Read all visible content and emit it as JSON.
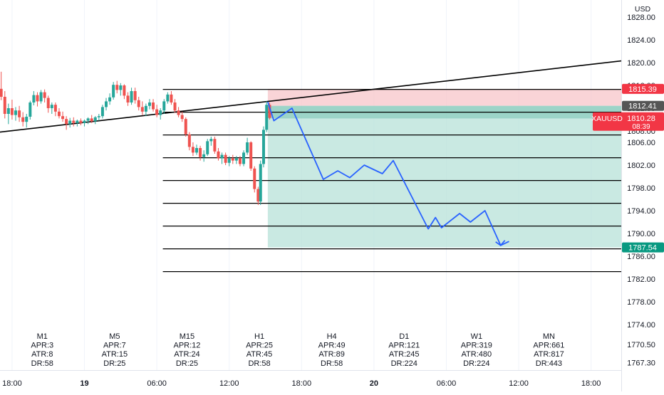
{
  "chart_data": {
    "type": "candlestick",
    "symbol": "XAUUSD",
    "currency": "USD",
    "ylim": [
      1766.0,
      1831.0
    ],
    "y_ticks": [
      1828.0,
      1824.0,
      1820.0,
      1816.0,
      1812.0,
      1808.0,
      1806.0,
      1802.0,
      1798.0,
      1794.0,
      1790.0,
      1786.0,
      1782.0,
      1778.0,
      1774.0,
      1770.5,
      1767.3
    ],
    "y_tick_labels": [
      "1828.00",
      "1824.00",
      "1820.00",
      "1816.00",
      "1812.00",
      "1808.00",
      "1806.00",
      "1802.00",
      "1798.00",
      "1794.00",
      "1790.00",
      "1786.00",
      "1782.00",
      "1778.00",
      "1774.00",
      "1770.50",
      "1767.30"
    ],
    "x_ticks": [
      "18:00",
      "19",
      "06:00",
      "12:00",
      "18:00",
      "20",
      "06:00",
      "12:00",
      "18:00"
    ],
    "x_tick_hours": [
      0,
      6,
      12,
      18,
      24,
      30,
      36,
      42,
      48
    ],
    "xlim_hours": [
      -1,
      50.5
    ],
    "price_tags": [
      {
        "label": "1815.39",
        "value": 1815.39,
        "color": "#f23645"
      },
      {
        "label": "1812.41",
        "value": 1812.41,
        "color": "#555555"
      },
      {
        "label": "XAUUSD",
        "label2": "1810.28",
        "label3": "08:39",
        "value": 1810.28,
        "color": "#f23645"
      },
      {
        "label": "1787.54",
        "value": 1787.54,
        "color": "#089981"
      }
    ],
    "trendline": {
      "points": [
        [
          -1,
          1807.8
        ],
        [
          50.5,
          1820.3
        ]
      ],
      "color": "#000000"
    },
    "levels": [
      {
        "value": 1815.3,
        "x_start": 12.5,
        "x_end": 50.5
      },
      {
        "value": 1811.3,
        "x_start": 12.5,
        "x_end": 50.5
      },
      {
        "value": 1807.3,
        "x_start": 12.5,
        "x_end": 50.5
      },
      {
        "value": 1803.3,
        "x_start": 12.5,
        "x_end": 50.5
      },
      {
        "value": 1799.3,
        "x_start": 12.5,
        "x_end": 50.5
      },
      {
        "value": 1795.3,
        "x_start": 12.5,
        "x_end": 50.5
      },
      {
        "value": 1791.3,
        "x_start": 12.5,
        "x_end": 50.5
      },
      {
        "value": 1787.3,
        "x_start": 12.5,
        "x_end": 50.5
      },
      {
        "value": 1783.3,
        "x_start": 12.5,
        "x_end": 50.5
      }
    ],
    "position": {
      "x_start": 21.2,
      "x_end": 50.5,
      "entry": 1812.41,
      "stop": 1815.39,
      "target": 1787.54,
      "entry_band_low": 1810.2,
      "stop_color": "#f7c6c9",
      "target_color": "#b2dfd6",
      "band_color": "#7fc7b7"
    },
    "projection": {
      "color": "#2962ff",
      "points": [
        [
          21.2,
          1813.1
        ],
        [
          21.7,
          1809.8
        ],
        [
          23.2,
          1812.0
        ],
        [
          25.8,
          1799.5
        ],
        [
          27.0,
          1801.0
        ],
        [
          28.0,
          1799.8
        ],
        [
          29.2,
          1802.0
        ],
        [
          30.7,
          1800.5
        ],
        [
          31.6,
          1802.8
        ],
        [
          34.5,
          1790.8
        ],
        [
          35.1,
          1792.8
        ],
        [
          35.6,
          1791.0
        ],
        [
          37.1,
          1793.5
        ],
        [
          38.0,
          1792.0
        ],
        [
          39.2,
          1794.0
        ],
        [
          40.5,
          1787.9
        ],
        [
          41.2,
          1788.6
        ]
      ],
      "arrow_tip": [
        40.5,
        1787.9
      ]
    },
    "candles": [
      {
        "t": -0.9,
        "o": 1815.4,
        "h": 1818.4,
        "l": 1813.4,
        "c": 1814.0
      },
      {
        "t": -0.6,
        "o": 1814.0,
        "h": 1815.0,
        "l": 1810.2,
        "c": 1811.0
      },
      {
        "t": -0.3,
        "o": 1811.0,
        "h": 1812.8,
        "l": 1809.2,
        "c": 1812.0
      },
      {
        "t": 0.0,
        "o": 1812.0,
        "h": 1813.5,
        "l": 1810.0,
        "c": 1810.8
      },
      {
        "t": 0.3,
        "o": 1810.8,
        "h": 1812.2,
        "l": 1809.8,
        "c": 1811.6
      },
      {
        "t": 0.6,
        "o": 1811.6,
        "h": 1812.4,
        "l": 1809.6,
        "c": 1810.4
      },
      {
        "t": 0.9,
        "o": 1810.4,
        "h": 1811.3,
        "l": 1808.8,
        "c": 1809.6
      },
      {
        "t": 1.2,
        "o": 1809.6,
        "h": 1811.0,
        "l": 1808.6,
        "c": 1810.5
      },
      {
        "t": 1.5,
        "o": 1810.5,
        "h": 1813.3,
        "l": 1810.0,
        "c": 1813.0
      },
      {
        "t": 1.8,
        "o": 1813.0,
        "h": 1815.0,
        "l": 1812.5,
        "c": 1814.3
      },
      {
        "t": 2.1,
        "o": 1814.3,
        "h": 1814.8,
        "l": 1812.3,
        "c": 1813.2
      },
      {
        "t": 2.4,
        "o": 1813.2,
        "h": 1815.2,
        "l": 1812.8,
        "c": 1814.8
      },
      {
        "t": 2.7,
        "o": 1814.8,
        "h": 1815.3,
        "l": 1813.0,
        "c": 1813.8
      },
      {
        "t": 3.0,
        "o": 1813.8,
        "h": 1814.2,
        "l": 1811.2,
        "c": 1812.0
      },
      {
        "t": 3.3,
        "o": 1812.0,
        "h": 1813.0,
        "l": 1811.0,
        "c": 1812.6
      },
      {
        "t": 3.6,
        "o": 1812.6,
        "h": 1813.0,
        "l": 1810.6,
        "c": 1811.4
      },
      {
        "t": 3.9,
        "o": 1811.4,
        "h": 1812.0,
        "l": 1810.2,
        "c": 1810.6
      },
      {
        "t": 4.2,
        "o": 1810.6,
        "h": 1811.4,
        "l": 1809.6,
        "c": 1810.1
      },
      {
        "t": 4.5,
        "o": 1810.1,
        "h": 1810.6,
        "l": 1808.2,
        "c": 1809.2
      },
      {
        "t": 4.8,
        "o": 1809.2,
        "h": 1810.3,
        "l": 1808.6,
        "c": 1809.8
      },
      {
        "t": 5.1,
        "o": 1809.8,
        "h": 1810.4,
        "l": 1808.8,
        "c": 1809.4
      },
      {
        "t": 5.4,
        "o": 1809.4,
        "h": 1810.0,
        "l": 1808.8,
        "c": 1809.8
      },
      {
        "t": 5.7,
        "o": 1809.8,
        "h": 1810.2,
        "l": 1809.0,
        "c": 1809.4
      },
      {
        "t": 6.0,
        "o": 1809.4,
        "h": 1810.0,
        "l": 1808.8,
        "c": 1809.8
      },
      {
        "t": 6.3,
        "o": 1809.8,
        "h": 1810.4,
        "l": 1809.2,
        "c": 1810.2
      },
      {
        "t": 6.6,
        "o": 1810.2,
        "h": 1810.8,
        "l": 1809.4,
        "c": 1809.7
      },
      {
        "t": 6.9,
        "o": 1809.7,
        "h": 1810.6,
        "l": 1809.2,
        "c": 1810.4
      },
      {
        "t": 7.2,
        "o": 1810.4,
        "h": 1811.0,
        "l": 1809.8,
        "c": 1810.6
      },
      {
        "t": 7.5,
        "o": 1810.6,
        "h": 1812.6,
        "l": 1810.2,
        "c": 1812.2
      },
      {
        "t": 7.8,
        "o": 1812.2,
        "h": 1813.8,
        "l": 1811.6,
        "c": 1813.2
      },
      {
        "t": 8.1,
        "o": 1813.2,
        "h": 1814.6,
        "l": 1812.6,
        "c": 1813.9
      },
      {
        "t": 8.4,
        "o": 1813.9,
        "h": 1816.6,
        "l": 1813.5,
        "c": 1816.1
      },
      {
        "t": 8.7,
        "o": 1816.1,
        "h": 1816.8,
        "l": 1814.6,
        "c": 1815.2
      },
      {
        "t": 9.0,
        "o": 1815.2,
        "h": 1816.4,
        "l": 1814.2,
        "c": 1816.0
      },
      {
        "t": 9.3,
        "o": 1816.0,
        "h": 1816.2,
        "l": 1813.6,
        "c": 1814.2
      },
      {
        "t": 9.6,
        "o": 1814.2,
        "h": 1814.8,
        "l": 1812.4,
        "c": 1813.0
      },
      {
        "t": 9.9,
        "o": 1813.0,
        "h": 1815.6,
        "l": 1812.6,
        "c": 1815.0
      },
      {
        "t": 10.2,
        "o": 1815.0,
        "h": 1815.6,
        "l": 1812.8,
        "c": 1813.4
      },
      {
        "t": 10.5,
        "o": 1813.4,
        "h": 1814.0,
        "l": 1811.6,
        "c": 1812.2
      },
      {
        "t": 10.8,
        "o": 1812.2,
        "h": 1813.2,
        "l": 1810.8,
        "c": 1811.4
      },
      {
        "t": 11.1,
        "o": 1811.4,
        "h": 1812.8,
        "l": 1810.6,
        "c": 1812.4
      },
      {
        "t": 11.4,
        "o": 1812.4,
        "h": 1813.6,
        "l": 1811.8,
        "c": 1813.0
      },
      {
        "t": 11.7,
        "o": 1813.0,
        "h": 1813.6,
        "l": 1811.4,
        "c": 1811.8
      },
      {
        "t": 12.0,
        "o": 1811.8,
        "h": 1812.6,
        "l": 1810.4,
        "c": 1810.8
      },
      {
        "t": 12.3,
        "o": 1810.8,
        "h": 1812.0,
        "l": 1810.0,
        "c": 1811.6
      },
      {
        "t": 12.6,
        "o": 1811.6,
        "h": 1813.6,
        "l": 1811.0,
        "c": 1813.2
      },
      {
        "t": 12.9,
        "o": 1813.2,
        "h": 1814.8,
        "l": 1812.8,
        "c": 1814.4
      },
      {
        "t": 13.2,
        "o": 1814.4,
        "h": 1815.0,
        "l": 1812.6,
        "c": 1813.0
      },
      {
        "t": 13.5,
        "o": 1813.0,
        "h": 1813.6,
        "l": 1811.2,
        "c": 1811.6
      },
      {
        "t": 13.8,
        "o": 1811.6,
        "h": 1812.2,
        "l": 1810.4,
        "c": 1810.8
      },
      {
        "t": 14.1,
        "o": 1810.8,
        "h": 1811.4,
        "l": 1809.6,
        "c": 1810.1
      },
      {
        "t": 14.4,
        "o": 1810.1,
        "h": 1810.4,
        "l": 1807.0,
        "c": 1807.4
      },
      {
        "t": 14.7,
        "o": 1807.4,
        "h": 1807.8,
        "l": 1804.6,
        "c": 1805.2
      },
      {
        "t": 15.0,
        "o": 1805.2,
        "h": 1806.0,
        "l": 1803.6,
        "c": 1804.2
      },
      {
        "t": 15.3,
        "o": 1804.2,
        "h": 1805.6,
        "l": 1803.8,
        "c": 1805.0
      },
      {
        "t": 15.6,
        "o": 1805.0,
        "h": 1805.4,
        "l": 1802.8,
        "c": 1803.4
      },
      {
        "t": 15.9,
        "o": 1803.4,
        "h": 1804.6,
        "l": 1802.6,
        "c": 1803.9
      },
      {
        "t": 16.2,
        "o": 1803.9,
        "h": 1806.6,
        "l": 1803.6,
        "c": 1806.2
      },
      {
        "t": 16.5,
        "o": 1806.2,
        "h": 1807.0,
        "l": 1805.4,
        "c": 1806.6
      },
      {
        "t": 16.8,
        "o": 1806.6,
        "h": 1807.0,
        "l": 1804.0,
        "c": 1804.4
      },
      {
        "t": 17.1,
        "o": 1804.4,
        "h": 1805.0,
        "l": 1802.8,
        "c": 1803.2
      },
      {
        "t": 17.4,
        "o": 1803.2,
        "h": 1804.2,
        "l": 1802.2,
        "c": 1803.8
      },
      {
        "t": 17.7,
        "o": 1803.8,
        "h": 1804.2,
        "l": 1802.0,
        "c": 1802.4
      },
      {
        "t": 18.0,
        "o": 1802.4,
        "h": 1803.6,
        "l": 1801.8,
        "c": 1803.2
      },
      {
        "t": 18.3,
        "o": 1803.2,
        "h": 1803.8,
        "l": 1802.2,
        "c": 1802.8
      },
      {
        "t": 18.6,
        "o": 1802.8,
        "h": 1803.6,
        "l": 1802.2,
        "c": 1803.2
      },
      {
        "t": 18.9,
        "o": 1803.2,
        "h": 1803.6,
        "l": 1801.8,
        "c": 1802.2
      },
      {
        "t": 19.2,
        "o": 1802.2,
        "h": 1804.6,
        "l": 1801.8,
        "c": 1804.2
      },
      {
        "t": 19.5,
        "o": 1804.2,
        "h": 1806.8,
        "l": 1803.8,
        "c": 1806.0
      },
      {
        "t": 19.8,
        "o": 1806.0,
        "h": 1806.2,
        "l": 1801.0,
        "c": 1801.4
      },
      {
        "t": 20.1,
        "o": 1801.4,
        "h": 1801.8,
        "l": 1797.2,
        "c": 1797.8
      },
      {
        "t": 20.4,
        "o": 1797.8,
        "h": 1798.2,
        "l": 1795.0,
        "c": 1795.6
      },
      {
        "t": 20.6,
        "o": 1795.6,
        "h": 1802.8,
        "l": 1795.0,
        "c": 1802.2
      },
      {
        "t": 20.85,
        "o": 1802.2,
        "h": 1808.8,
        "l": 1801.6,
        "c": 1808.2
      },
      {
        "t": 21.1,
        "o": 1808.2,
        "h": 1813.2,
        "l": 1807.8,
        "c": 1812.6
      },
      {
        "t": 21.35,
        "o": 1812.6,
        "h": 1813.0,
        "l": 1810.0,
        "c": 1810.3
      }
    ],
    "timeframe_stats": [
      {
        "tf": "M1",
        "apr": "APR:3",
        "atr": "ATR:8",
        "dr": "DR:58",
        "t": 2.5
      },
      {
        "tf": "M5",
        "apr": "APR:7",
        "atr": "ATR:15",
        "dr": "DR:25",
        "t": 8.5
      },
      {
        "tf": "M15",
        "apr": "APR:12",
        "atr": "ATR:24",
        "dr": "DR:25",
        "t": 14.5
      },
      {
        "tf": "H1",
        "apr": "APR:25",
        "atr": "ATR:45",
        "dr": "DR:58",
        "t": 20.5
      },
      {
        "tf": "H4",
        "apr": "APR:49",
        "atr": "ATR:89",
        "dr": "DR:58",
        "t": 26.5
      },
      {
        "tf": "D1",
        "apr": "APR:121",
        "atr": "ATR:245",
        "dr": "DR:224",
        "t": 32.5
      },
      {
        "tf": "W1",
        "apr": "APR:319",
        "atr": "ATR:480",
        "dr": "DR:224",
        "t": 38.5
      },
      {
        "tf": "MN",
        "apr": "APR:661",
        "atr": "ATR:817",
        "dr": "DR:443",
        "t": 44.5
      }
    ],
    "colors": {
      "up": "#26a69a",
      "down": "#ef5350",
      "axis_text": "#131722",
      "axis_border": "#e0e3eb",
      "grid": "#f0f3fa"
    }
  }
}
